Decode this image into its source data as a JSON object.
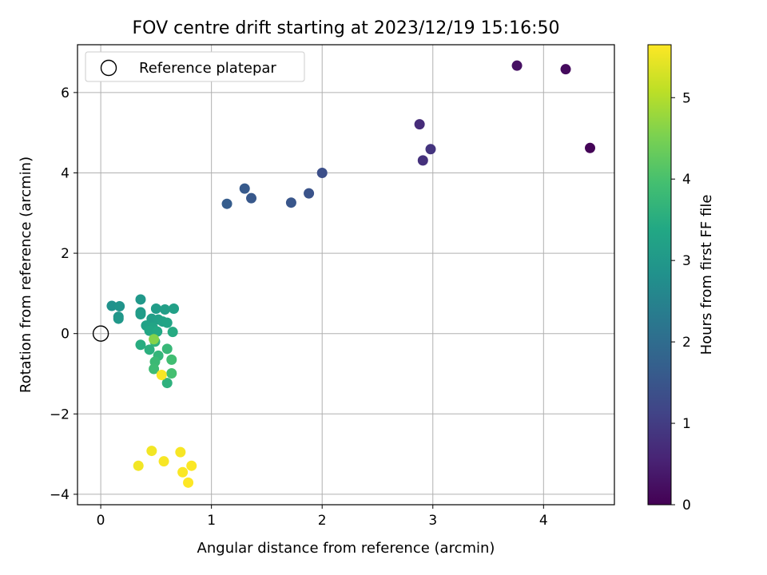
{
  "chart_data": {
    "type": "scatter",
    "title": "FOV centre drift starting at 2023/12/19 15:16:50",
    "xlabel": "Angular distance from reference (arcmin)",
    "ylabel": "Rotation from reference (arcmin)",
    "xlim": [
      -0.21,
      4.64
    ],
    "ylim": [
      -4.26,
      7.19
    ],
    "xticks": [
      0,
      1,
      2,
      3,
      4
    ],
    "yticks": [
      -4,
      -2,
      0,
      2,
      4,
      6
    ],
    "xtick_labels": [
      "0",
      "1",
      "2",
      "3",
      "4"
    ],
    "ytick_labels": [
      "−4",
      "−2",
      "0",
      "2",
      "4",
      "6"
    ],
    "grid": true,
    "legend": {
      "position": "top-left",
      "label": "Reference platepar"
    },
    "reference_point": {
      "x": 0,
      "y": 0
    },
    "colorbar": {
      "label": "Hours from first FF file",
      "colormap": "viridis",
      "min": 0,
      "max": 5.65,
      "ticks": [
        0,
        1,
        2,
        3,
        4,
        5
      ],
      "tick_labels": [
        "0",
        "1",
        "2",
        "3",
        "4",
        "5"
      ]
    },
    "points": [
      {
        "x": 4.42,
        "y": 4.62,
        "h": 0.05
      },
      {
        "x": 4.2,
        "y": 6.58,
        "h": 0.15
      },
      {
        "x": 3.76,
        "y": 6.67,
        "h": 0.25
      },
      {
        "x": 2.88,
        "y": 5.21,
        "h": 0.7
      },
      {
        "x": 2.98,
        "y": 4.59,
        "h": 0.85
      },
      {
        "x": 2.91,
        "y": 4.31,
        "h": 0.8
      },
      {
        "x": 2.0,
        "y": 4.0,
        "h": 1.35
      },
      {
        "x": 1.88,
        "y": 3.49,
        "h": 1.45
      },
      {
        "x": 1.72,
        "y": 3.26,
        "h": 1.5
      },
      {
        "x": 1.3,
        "y": 3.61,
        "h": 1.6
      },
      {
        "x": 1.36,
        "y": 3.37,
        "h": 1.55
      },
      {
        "x": 1.14,
        "y": 3.23,
        "h": 1.65
      },
      {
        "x": 0.1,
        "y": 0.69,
        "h": 2.85
      },
      {
        "x": 0.17,
        "y": 0.68,
        "h": 2.9
      },
      {
        "x": 0.16,
        "y": 0.42,
        "h": 2.95
      },
      {
        "x": 0.16,
        "y": 0.37,
        "h": 3.0
      },
      {
        "x": 0.36,
        "y": 0.85,
        "h": 3.0
      },
      {
        "x": 0.36,
        "y": 0.53,
        "h": 3.05
      },
      {
        "x": 0.36,
        "y": 0.48,
        "h": 3.1
      },
      {
        "x": 0.5,
        "y": 0.62,
        "h": 3.1
      },
      {
        "x": 0.58,
        "y": 0.6,
        "h": 3.15
      },
      {
        "x": 0.66,
        "y": 0.62,
        "h": 3.2
      },
      {
        "x": 0.46,
        "y": 0.37,
        "h": 3.15
      },
      {
        "x": 0.52,
        "y": 0.35,
        "h": 3.2
      },
      {
        "x": 0.56,
        "y": 0.3,
        "h": 3.25
      },
      {
        "x": 0.6,
        "y": 0.27,
        "h": 3.3
      },
      {
        "x": 0.41,
        "y": 0.2,
        "h": 3.25
      },
      {
        "x": 0.47,
        "y": 0.15,
        "h": 3.3
      },
      {
        "x": 0.44,
        "y": 0.07,
        "h": 3.35
      },
      {
        "x": 0.65,
        "y": 0.04,
        "h": 3.45
      },
      {
        "x": 0.51,
        "y": 0.05,
        "h": 3.4
      },
      {
        "x": 0.36,
        "y": -0.28,
        "h": 3.5
      },
      {
        "x": 0.44,
        "y": -0.4,
        "h": 3.55
      },
      {
        "x": 0.49,
        "y": -0.2,
        "h": 3.6
      },
      {
        "x": 0.52,
        "y": -0.55,
        "h": 3.7
      },
      {
        "x": 0.6,
        "y": -0.38,
        "h": 3.75
      },
      {
        "x": 0.49,
        "y": -0.7,
        "h": 3.8
      },
      {
        "x": 0.48,
        "y": -0.88,
        "h": 3.85
      },
      {
        "x": 0.64,
        "y": -0.65,
        "h": 3.9
      },
      {
        "x": 0.64,
        "y": -0.99,
        "h": 3.95
      },
      {
        "x": 0.6,
        "y": -1.23,
        "h": 3.6
      },
      {
        "x": 0.48,
        "y": -0.14,
        "h": 4.6
      },
      {
        "x": 0.55,
        "y": -1.03,
        "h": 5.6
      },
      {
        "x": 0.46,
        "y": -2.92,
        "h": 5.55
      },
      {
        "x": 0.34,
        "y": -3.29,
        "h": 5.55
      },
      {
        "x": 0.57,
        "y": -3.18,
        "h": 5.6
      },
      {
        "x": 0.72,
        "y": -2.95,
        "h": 5.6
      },
      {
        "x": 0.74,
        "y": -3.45,
        "h": 5.62
      },
      {
        "x": 0.82,
        "y": -3.29,
        "h": 5.63
      },
      {
        "x": 0.79,
        "y": -3.71,
        "h": 5.65
      }
    ]
  }
}
